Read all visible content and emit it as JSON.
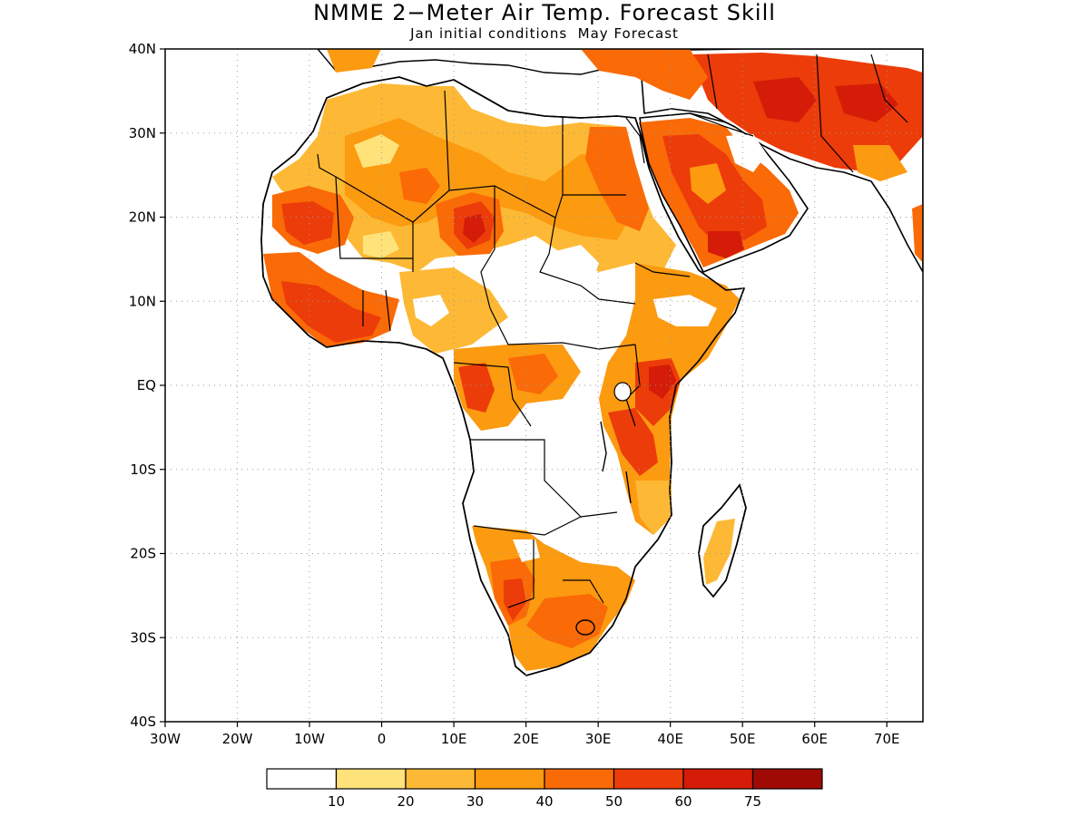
{
  "title": "NMME 2−Meter Air Temp. Forecast Skill",
  "subtitle": "Jan initial conditions  May Forecast",
  "axes": {
    "x_ticks": [
      "30W",
      "20W",
      "10W",
      "0",
      "10E",
      "20E",
      "30E",
      "40E",
      "50E",
      "60E",
      "70E"
    ],
    "y_ticks": [
      "40N",
      "30N",
      "20N",
      "10N",
      "EQ",
      "10S",
      "20S",
      "30S",
      "40S"
    ],
    "lon_range": [
      -30,
      75
    ],
    "lat_range": [
      -40,
      40
    ],
    "grid": "dotted"
  },
  "legend": {
    "labels": [
      "10",
      "20",
      "30",
      "40",
      "50",
      "60",
      "75"
    ],
    "bins": [
      {
        "range": "<10",
        "color": "#ffffff"
      },
      {
        "range": "10-20",
        "color": "#ffe37a"
      },
      {
        "range": "20-30",
        "color": "#fdb935"
      },
      {
        "range": "30-40",
        "color": "#fc9a10"
      },
      {
        "range": "40-50",
        "color": "#fa6a07"
      },
      {
        "range": "50-60",
        "color": "#ec3c09"
      },
      {
        "range": "60-75",
        "color": "#d51c08"
      },
      {
        "range": ">75",
        "color": "#a00a05"
      }
    ]
  }
}
